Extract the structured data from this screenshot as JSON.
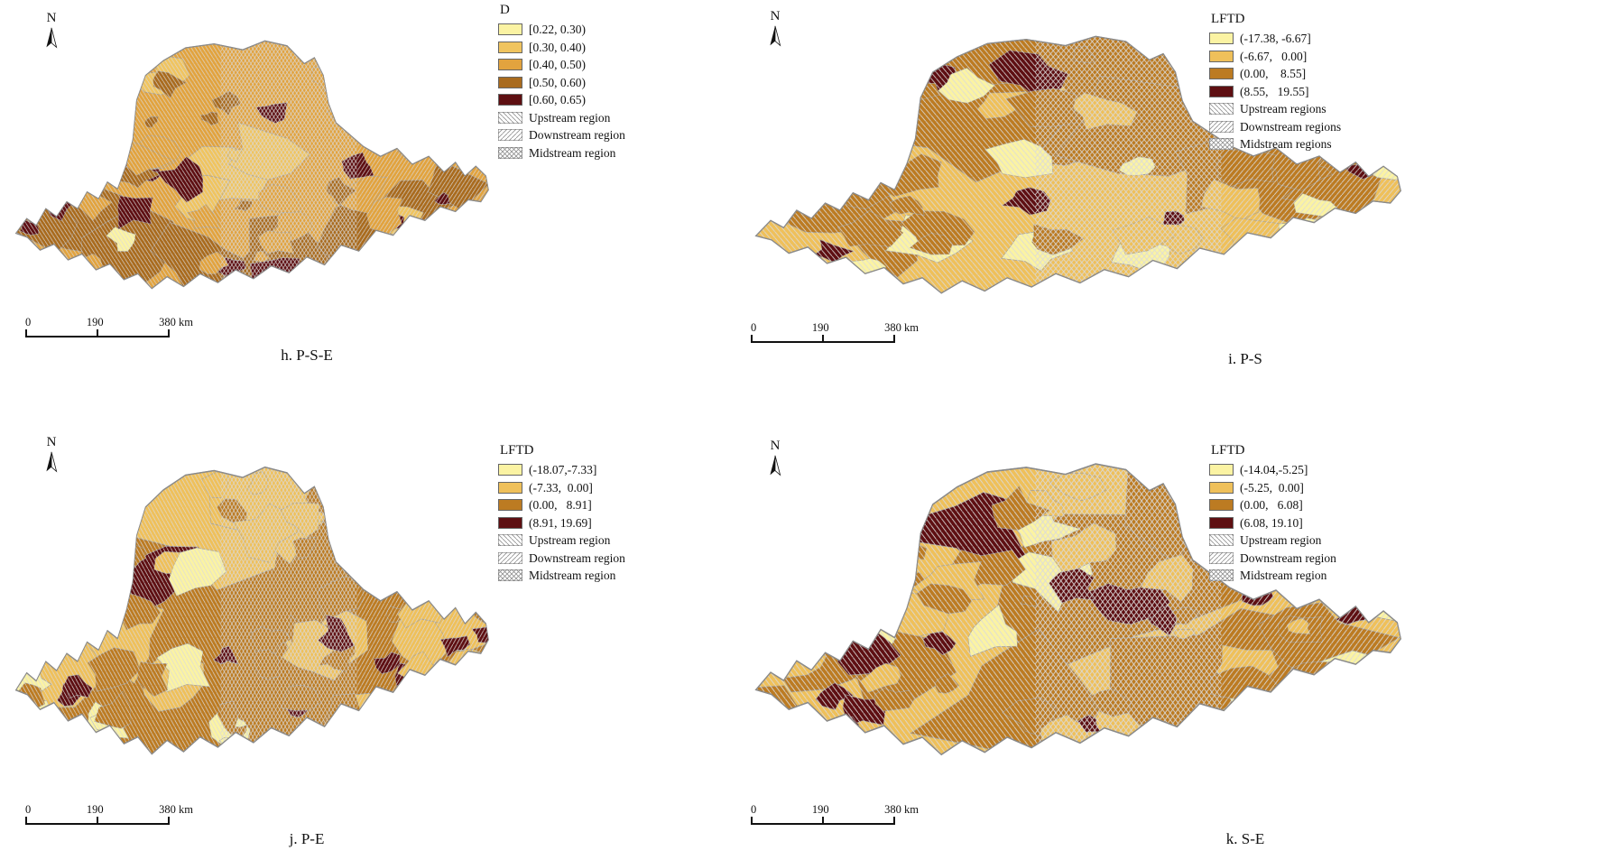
{
  "figure": {
    "type": "choropleth-map-grid",
    "region_hatch_note": "upstream-backslash, downstream-forwardslash, midstream-crosshatch"
  },
  "panels": [
    {
      "id": "h",
      "caption": "h. P-S-E",
      "north": "N",
      "legend_title": "D",
      "classes": [
        {
          "label": "[0.22, 0.30)",
          "color": "#FBF3A3"
        },
        {
          "label": "[0.30, 0.40)",
          "color": "#F0C45F"
        },
        {
          "label": "[0.40, 0.50)",
          "color": "#E2A33E"
        },
        {
          "label": "[0.50, 0.60)",
          "color": "#A96B1E"
        },
        {
          "label": "[0.60, 0.65)",
          "color": "#5E0F12"
        }
      ],
      "regions": [
        "Upstream region",
        "Downstream region",
        "Midstream region"
      ],
      "scalebar": [
        "0",
        "190",
        "380 km"
      ]
    },
    {
      "id": "i",
      "caption": "i. P-S",
      "north": "N",
      "legend_title": "LFTD",
      "classes": [
        {
          "label": "(-17.38, -6.67]",
          "color": "#FBF3A3"
        },
        {
          "label": "(-6.67,   0.00]",
          "color": "#EFC05A"
        },
        {
          "label": "(0.00,    8.55]",
          "color": "#BC7B22"
        },
        {
          "label": "(8.55,   19.55]",
          "color": "#5E0F12"
        }
      ],
      "regions": [
        "Upstream regions",
        "Downstream regions",
        "Midstream regions"
      ],
      "scalebar": [
        "0",
        "190",
        "380 km"
      ]
    },
    {
      "id": "j",
      "caption": "j. P-E",
      "north": "N",
      "legend_title": "LFTD",
      "classes": [
        {
          "label": "(-18.07,-7.33]",
          "color": "#FBF3A3"
        },
        {
          "label": "(-7.33,  0.00]",
          "color": "#EFC05A"
        },
        {
          "label": "(0.00,   8.91]",
          "color": "#BC7B22"
        },
        {
          "label": "(8.91, 19.69]",
          "color": "#5E0F12"
        }
      ],
      "regions": [
        "Upstream region",
        "Downstream region",
        "Midstream region"
      ],
      "scalebar": [
        "0",
        "190",
        "380 km"
      ]
    },
    {
      "id": "k",
      "caption": "k. S-E",
      "north": "N",
      "legend_title": "LFTD",
      "classes": [
        {
          "label": "(-14.04,-5.25]",
          "color": "#FBF3A3"
        },
        {
          "label": "(-5.25,  0.00]",
          "color": "#EFC05A"
        },
        {
          "label": "(0.00,   6.08]",
          "color": "#BC7B22"
        },
        {
          "label": "(6.08, 19.10]",
          "color": "#5E0F12"
        }
      ],
      "regions": [
        "Upstream region",
        "Downstream region",
        "Midstream region"
      ],
      "scalebar": [
        "0",
        "190",
        "380 km"
      ]
    }
  ]
}
